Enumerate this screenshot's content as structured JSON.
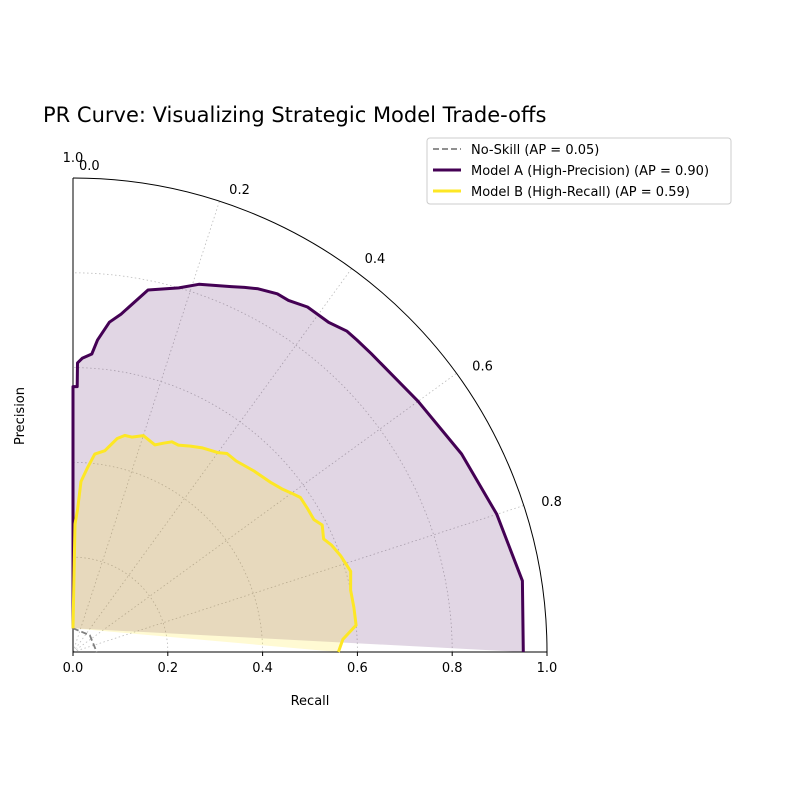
{
  "chart_data": {
    "type": "line",
    "title": "PR Curve: Visualizing Strategic Model Trade-offs",
    "xlabel": "Recall",
    "ylabel": "Precision",
    "xlim": [
      0.0,
      1.0
    ],
    "ylim": [
      0.0,
      1.0
    ],
    "x_ticks": [
      "0.0",
      "0.2",
      "0.4",
      "0.6",
      "0.8",
      "1.0"
    ],
    "y_ticks": [
      "0.0",
      "1.0"
    ],
    "angular_ticks": [
      "0.0",
      "0.2",
      "0.4",
      "0.6",
      "0.8"
    ],
    "grid": true,
    "legend_position": "top-right",
    "series": [
      {
        "name": "No-Skill (AP = 0.05)",
        "style": "dashed",
        "color": "#808080",
        "recall": [
          0.0,
          0.5,
          1.0
        ],
        "precision": [
          0.05,
          0.05,
          0.05
        ]
      },
      {
        "name": "Model A (High-Precision) (AP = 0.90)",
        "style": "solid",
        "color": "#440154",
        "recall": [
          0.0,
          0.0,
          0.0,
          0.01,
          0.01,
          0.02,
          0.04,
          0.05,
          0.07,
          0.09,
          0.13,
          0.18,
          0.21,
          0.26,
          0.28,
          0.3,
          0.33,
          0.35,
          0.38,
          0.42,
          0.45,
          0.47,
          0.5,
          0.6,
          0.7,
          0.8,
          0.9,
          1.0
        ],
        "precision": [
          0.05,
          0.05,
          0.56,
          0.56,
          0.61,
          0.62,
          0.63,
          0.66,
          0.7,
          0.72,
          0.78,
          0.8,
          0.82,
          0.84,
          0.85,
          0.86,
          0.87,
          0.87,
          0.88,
          0.88,
          0.89,
          0.89,
          0.89,
          0.9,
          0.92,
          0.94,
          0.96,
          0.95
        ]
      },
      {
        "name": "Model B (High-Recall) (AP = 0.59)",
        "style": "solid",
        "color": "#fde725",
        "recall": [
          0.0,
          0.0,
          0.01,
          0.02,
          0.03,
          0.05,
          0.07,
          0.1,
          0.13,
          0.15,
          0.17,
          0.2,
          0.24,
          0.26,
          0.28,
          0.3,
          0.33,
          0.36,
          0.4,
          0.42,
          0.45,
          0.5,
          0.55,
          0.58,
          0.6,
          0.62,
          0.65,
          0.68,
          0.7,
          0.73,
          0.75,
          0.78,
          0.82,
          0.86,
          0.9,
          0.94,
          0.97,
          1.0
        ],
        "precision": [
          0.05,
          0.05,
          0.27,
          0.3,
          0.36,
          0.39,
          0.42,
          0.43,
          0.46,
          0.47,
          0.47,
          0.48,
          0.47,
          0.48,
          0.49,
          0.49,
          0.5,
          0.51,
          0.52,
          0.53,
          0.53,
          0.54,
          0.55,
          0.56,
          0.57,
          0.58,
          0.58,
          0.58,
          0.59,
          0.58,
          0.59,
          0.6,
          0.61,
          0.6,
          0.6,
          0.6,
          0.57,
          0.56
        ]
      }
    ]
  }
}
